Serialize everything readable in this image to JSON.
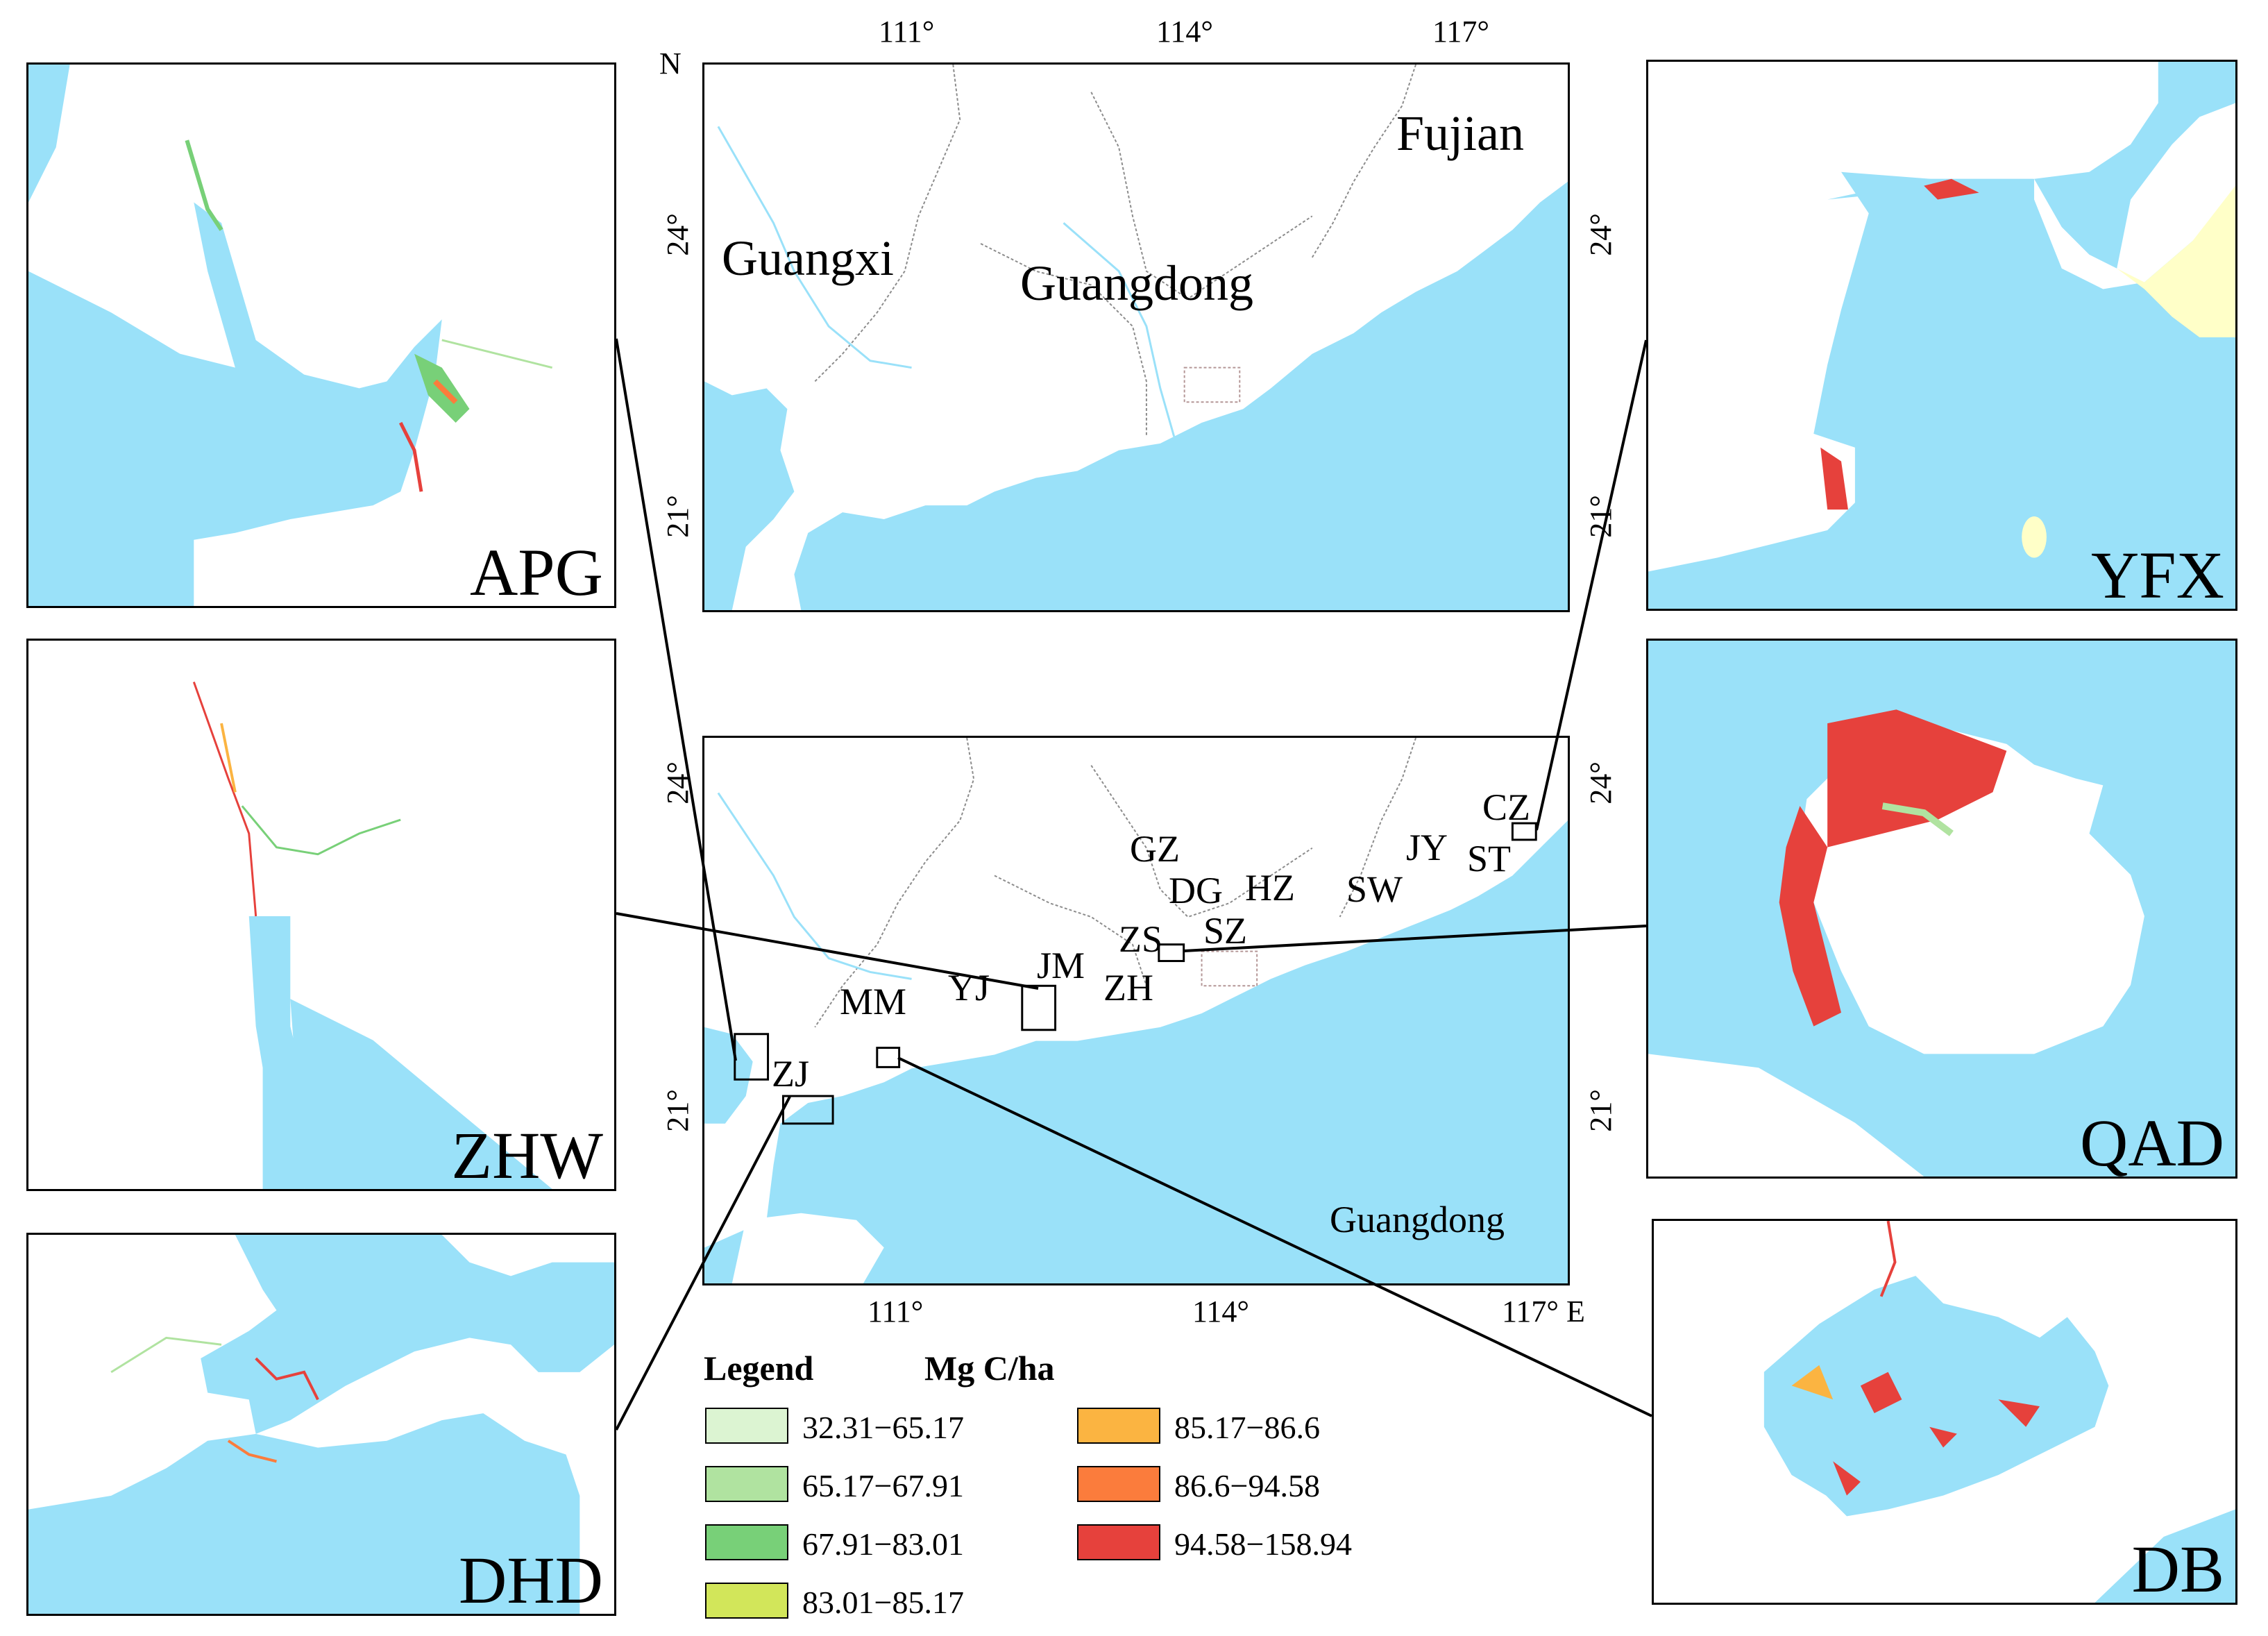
{
  "colors": {
    "sea": "#9ae1f9",
    "land": "#ffffff",
    "boundary": "#8c8c8c",
    "river": "#9ae1f9",
    "sand": "#ffffc8"
  },
  "top_map": {
    "lon_ticks": [
      "111°",
      "114°",
      "117°"
    ],
    "lat_ticks": [
      "24°",
      "21°"
    ],
    "north_label": "N",
    "regions": [
      "Fujian",
      "Guangxi",
      "Guangdong"
    ]
  },
  "bottom_map": {
    "lon_ticks": [
      "111°",
      "114°",
      "117° E"
    ],
    "lat_ticks": [
      "24°",
      "21°"
    ],
    "region_label": "Guangdong",
    "cities": [
      "GZ",
      "DG",
      "HZ",
      "SW",
      "JY",
      "ST",
      "CZ",
      "ZS",
      "SZ",
      "JM",
      "YJ",
      "ZH",
      "MM",
      "ZJ"
    ]
  },
  "insets": {
    "APG": "APG",
    "ZHW": "ZHW",
    "DHD": "DHD",
    "YFX": "YFX",
    "QAD": "QAD",
    "DB": "DB"
  },
  "legend": {
    "title": "Legend",
    "unit": "Mg C/ha",
    "classes": [
      {
        "range": "32.31−65.17",
        "color": "#dcf4d2"
      },
      {
        "range": "65.17−67.91",
        "color": "#b0e3a0"
      },
      {
        "range": "67.91−83.01",
        "color": "#78d078"
      },
      {
        "range": "83.01−85.17",
        "color": "#d2e65a"
      },
      {
        "range": "85.17−86.6",
        "color": "#fbb441"
      },
      {
        "range": "86.6−94.58",
        "color": "#fb7c3c"
      },
      {
        "range": "94.58−158.94",
        "color": "#e6413c"
      }
    ]
  }
}
